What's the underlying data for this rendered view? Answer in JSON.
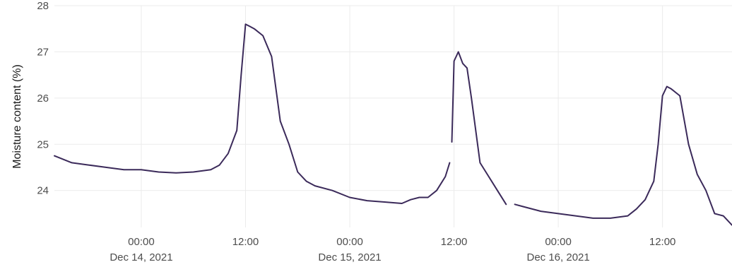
{
  "chart_data": {
    "type": "line",
    "title": "",
    "xlabel": "",
    "ylabel": "Moisture content (%)",
    "ylim": [
      23.2,
      28.0
    ],
    "xlim": [
      "2021-12-13T14:00",
      "2021-12-16T20:00"
    ],
    "grid": true,
    "legend": "none",
    "line_color": "#3b2a5a",
    "y_ticks": [
      "24",
      "25",
      "26",
      "27",
      "28"
    ],
    "x_ticks": [
      {
        "t": "2021-12-14T00:00",
        "line1": "00:00",
        "line2": "Dec 14, 2021"
      },
      {
        "t": "2021-12-14T12:00",
        "line1": "12:00",
        "line2": ""
      },
      {
        "t": "2021-12-15T00:00",
        "line1": "00:00",
        "line2": "Dec 15, 2021"
      },
      {
        "t": "2021-12-15T12:00",
        "line1": "12:00",
        "line2": ""
      },
      {
        "t": "2021-12-16T00:00",
        "line1": "00:00",
        "line2": "Dec 16, 2021"
      },
      {
        "t": "2021-12-16T12:00",
        "line1": "12:00",
        "line2": ""
      }
    ],
    "series": [
      {
        "segments": [
          [
            [
              "2021-12-13T14:00",
              24.75
            ],
            [
              "2021-12-13T16:00",
              24.6
            ],
            [
              "2021-12-13T18:00",
              24.55
            ],
            [
              "2021-12-13T20:00",
              24.5
            ],
            [
              "2021-12-13T22:00",
              24.45
            ],
            [
              "2021-12-14T00:00",
              24.45
            ],
            [
              "2021-12-14T02:00",
              24.4
            ],
            [
              "2021-12-14T04:00",
              24.38
            ],
            [
              "2021-12-14T06:00",
              24.4
            ],
            [
              "2021-12-14T08:00",
              24.45
            ],
            [
              "2021-12-14T09:00",
              24.55
            ],
            [
              "2021-12-14T10:00",
              24.8
            ],
            [
              "2021-12-14T11:00",
              25.3
            ],
            [
              "2021-12-14T11:30",
              26.5
            ],
            [
              "2021-12-14T12:00",
              27.6
            ],
            [
              "2021-12-14T12:30",
              27.55
            ],
            [
              "2021-12-14T13:00",
              27.5
            ],
            [
              "2021-12-14T14:00",
              27.35
            ],
            [
              "2021-12-14T15:00",
              26.9
            ],
            [
              "2021-12-14T16:00",
              25.5
            ],
            [
              "2021-12-14T17:00",
              25.0
            ],
            [
              "2021-12-14T18:00",
              24.4
            ],
            [
              "2021-12-14T19:00",
              24.2
            ],
            [
              "2021-12-14T20:00",
              24.1
            ],
            [
              "2021-12-14T22:00",
              24.0
            ],
            [
              "2021-12-15T00:00",
              23.85
            ],
            [
              "2021-12-15T02:00",
              23.78
            ],
            [
              "2021-12-15T04:00",
              23.75
            ],
            [
              "2021-12-15T06:00",
              23.72
            ],
            [
              "2021-12-15T07:00",
              23.8
            ],
            [
              "2021-12-15T08:00",
              23.85
            ],
            [
              "2021-12-15T09:00",
              23.85
            ],
            [
              "2021-12-15T10:00",
              24.0
            ],
            [
              "2021-12-15T11:00",
              24.3
            ],
            [
              "2021-12-15T11:30",
              24.6
            ]
          ],
          [
            [
              "2021-12-15T11:45",
              25.05
            ],
            [
              "2021-12-15T12:00",
              26.8
            ],
            [
              "2021-12-15T12:30",
              27.0
            ],
            [
              "2021-12-15T13:00",
              26.75
            ],
            [
              "2021-12-15T13:30",
              26.65
            ],
            [
              "2021-12-15T14:00",
              26.0
            ],
            [
              "2021-12-15T15:00",
              24.6
            ],
            [
              "2021-12-15T16:00",
              24.3
            ],
            [
              "2021-12-15T17:00",
              24.0
            ],
            [
              "2021-12-15T18:00",
              23.7
            ]
          ],
          [
            [
              "2021-12-15T19:00",
              23.7
            ],
            [
              "2021-12-15T20:00",
              23.65
            ],
            [
              "2021-12-15T22:00",
              23.55
            ],
            [
              "2021-12-16T00:00",
              23.5
            ],
            [
              "2021-12-16T02:00",
              23.45
            ],
            [
              "2021-12-16T04:00",
              23.4
            ],
            [
              "2021-12-16T06:00",
              23.4
            ],
            [
              "2021-12-16T08:00",
              23.45
            ],
            [
              "2021-12-16T09:00",
              23.6
            ],
            [
              "2021-12-16T10:00",
              23.8
            ],
            [
              "2021-12-16T11:00",
              24.2
            ],
            [
              "2021-12-16T11:30",
              25.0
            ],
            [
              "2021-12-16T12:00",
              26.05
            ],
            [
              "2021-12-16T12:30",
              26.25
            ],
            [
              "2021-12-16T13:00",
              26.2
            ],
            [
              "2021-12-16T14:00",
              26.05
            ],
            [
              "2021-12-16T15:00",
              25.0
            ],
            [
              "2021-12-16T16:00",
              24.35
            ],
            [
              "2021-12-16T17:00",
              24.0
            ],
            [
              "2021-12-16T18:00",
              23.5
            ],
            [
              "2021-12-16T19:00",
              23.45
            ],
            [
              "2021-12-16T20:00",
              23.25
            ]
          ]
        ]
      }
    ]
  }
}
